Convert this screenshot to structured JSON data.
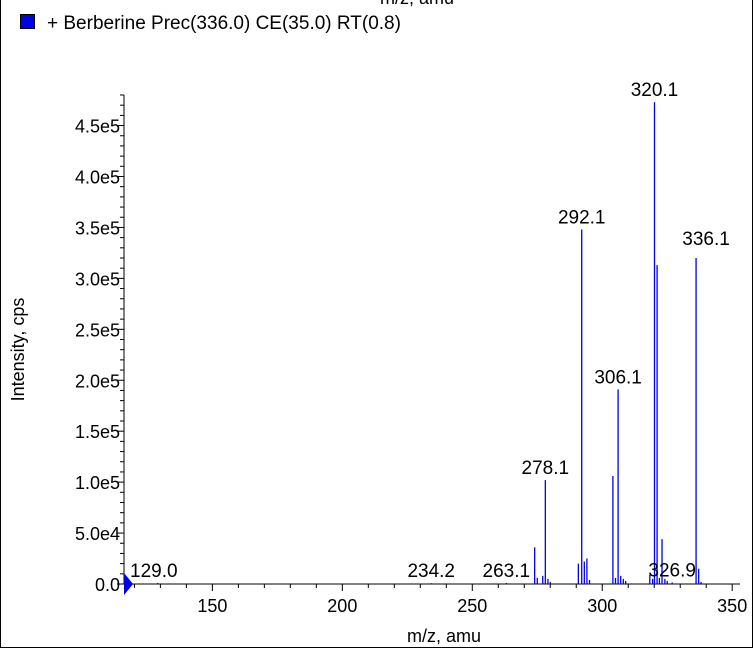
{
  "chart_data": {
    "type": "bar",
    "top_label": "m/z, amu",
    "legend": {
      "label": "+ Berberine Prec(336.0) CE(35.0) RT(0.8)",
      "color": "#0000e6"
    },
    "xlabel": "m/z, amu",
    "ylabel": "Intensity, cps",
    "xlim": [
      116,
      353
    ],
    "ylim": [
      0,
      480000
    ],
    "x_ticks": [
      {
        "value": 150,
        "label": "150"
      },
      {
        "value": 200,
        "label": "200"
      },
      {
        "value": 250,
        "label": "250"
      },
      {
        "value": 300,
        "label": "300"
      },
      {
        "value": 350,
        "label": "350"
      }
    ],
    "y_ticks": [
      {
        "value": 0,
        "label": "0.0"
      },
      {
        "value": 50000,
        "label": "5.0e4"
      },
      {
        "value": 100000,
        "label": "1.0e5"
      },
      {
        "value": 150000,
        "label": "1.5e5"
      },
      {
        "value": 200000,
        "label": "2.0e5"
      },
      {
        "value": 250000,
        "label": "2.5e5"
      },
      {
        "value": 300000,
        "label": "3.0e5"
      },
      {
        "value": 350000,
        "label": "3.5e5"
      },
      {
        "value": 400000,
        "label": "4.0e5"
      },
      {
        "value": 450000,
        "label": "4.5e5"
      }
    ],
    "series": [
      {
        "color": "#0000e6",
        "peaks": [
          {
            "mz": 129.0,
            "intensity": 1000
          },
          {
            "mz": 234.2,
            "intensity": 800
          },
          {
            "mz": 263.1,
            "intensity": 1000
          },
          {
            "mz": 274.0,
            "intensity": 36000
          },
          {
            "mz": 275.0,
            "intensity": 6000
          },
          {
            "mz": 277.1,
            "intensity": 8000
          },
          {
            "mz": 278.1,
            "intensity": 102000
          },
          {
            "mz": 279.1,
            "intensity": 5000
          },
          {
            "mz": 280.0,
            "intensity": 2000
          },
          {
            "mz": 290.8,
            "intensity": 20000
          },
          {
            "mz": 292.1,
            "intensity": 348000
          },
          {
            "mz": 293.1,
            "intensity": 22000
          },
          {
            "mz": 294.1,
            "intensity": 25000
          },
          {
            "mz": 295.1,
            "intensity": 4000
          },
          {
            "mz": 304.1,
            "intensity": 106000
          },
          {
            "mz": 305.1,
            "intensity": 6000
          },
          {
            "mz": 306.1,
            "intensity": 191000
          },
          {
            "mz": 307.1,
            "intensity": 8000
          },
          {
            "mz": 308.1,
            "intensity": 5000
          },
          {
            "mz": 309.0,
            "intensity": 3000
          },
          {
            "mz": 318.3,
            "intensity": 9000
          },
          {
            "mz": 319.4,
            "intensity": 5000
          },
          {
            "mz": 320.1,
            "intensity": 473000
          },
          {
            "mz": 321.1,
            "intensity": 313000
          },
          {
            "mz": 322.0,
            "intensity": 6000
          },
          {
            "mz": 323.0,
            "intensity": 44000
          },
          {
            "mz": 324.1,
            "intensity": 5000
          },
          {
            "mz": 325.0,
            "intensity": 3000
          },
          {
            "mz": 326.9,
            "intensity": 1500
          },
          {
            "mz": 336.1,
            "intensity": 320000
          },
          {
            "mz": 337.1,
            "intensity": 15000
          },
          {
            "mz": 338.0,
            "intensity": 2000
          }
        ]
      }
    ],
    "annotations": [
      {
        "mz": 129.0,
        "label": "129.0"
      },
      {
        "mz": 234.2,
        "label": "234.2"
      },
      {
        "mz": 263.1,
        "label": "263.1"
      },
      {
        "mz": 278.1,
        "label": "278.1"
      },
      {
        "mz": 292.1,
        "label": "292.1"
      },
      {
        "mz": 306.1,
        "label": "306.1"
      },
      {
        "mz": 320.1,
        "label": "320.1"
      },
      {
        "mz": 326.9,
        "label": "326.9"
      },
      {
        "mz": 336.1,
        "label": "336.1"
      }
    ],
    "grid": false,
    "legend_position": "top-left"
  }
}
